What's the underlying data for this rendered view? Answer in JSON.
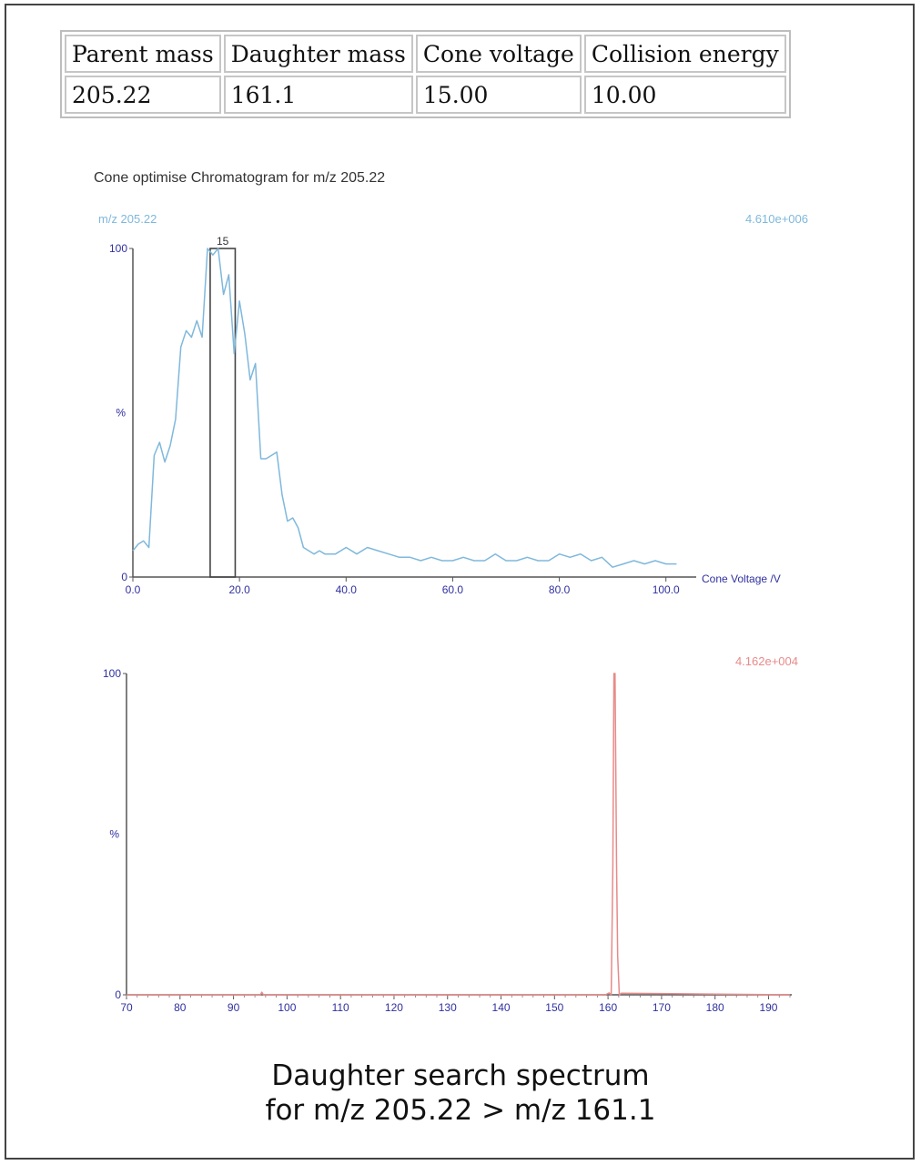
{
  "params_table": {
    "headers": [
      "Parent mass",
      "Daughter mass",
      "Cone voltage",
      "Collision energy"
    ],
    "values": [
      "205.22",
      "161.1",
      "15.00",
      "10.00"
    ]
  },
  "caption": {
    "line1": "Daughter search spectrum",
    "line2": "for m/z 205.22 > m/z 161.1"
  },
  "colors": {
    "cone_trace": "#7fb8dc",
    "daughter_trace": "#e88a8a",
    "axis_labels": "#3030a0",
    "frame": "#555555"
  },
  "chart_data": [
    {
      "type": "line",
      "title": "Cone optimise Chromatogram for m/z 205.22",
      "trace_label": "m/z 205.22",
      "intensity": "4.610e+006",
      "xlabel": "Cone Voltage /V",
      "ylabel": "%",
      "xlim": [
        0,
        105
      ],
      "ylim": [
        0,
        100
      ],
      "x_ticks": [
        "0.0",
        "20.0",
        "40.0",
        "60.0",
        "80.0",
        "100.0"
      ],
      "y_ticks": [
        "0",
        "100"
      ],
      "y_mid_label": "%",
      "selected_label": "15",
      "selected_range": [
        14.5,
        19.2
      ],
      "x": [
        0,
        1,
        2,
        3,
        4,
        5,
        6,
        7,
        8,
        9,
        10,
        11,
        12,
        13,
        14,
        15,
        16,
        17,
        18,
        19,
        20,
        21,
        22,
        23,
        24,
        25,
        26,
        27,
        28,
        29,
        30,
        31,
        32,
        33,
        34,
        35,
        36,
        38,
        40,
        42,
        44,
        46,
        48,
        50,
        52,
        54,
        56,
        58,
        60,
        62,
        64,
        66,
        68,
        70,
        72,
        74,
        76,
        78,
        80,
        82,
        84,
        86,
        88,
        90,
        92,
        94,
        96,
        98,
        100,
        101,
        102
      ],
      "y": [
        8,
        10,
        11,
        9,
        37,
        41,
        35,
        40,
        48,
        70,
        75,
        73,
        78,
        73,
        100,
        98,
        100,
        86,
        92,
        68,
        84,
        74,
        60,
        65,
        36,
        36,
        37,
        38,
        25,
        17,
        18,
        15,
        9,
        8,
        7,
        8,
        7,
        7,
        9,
        7,
        9,
        8,
        7,
        6,
        6,
        5,
        6,
        5,
        5,
        6,
        5,
        5,
        7,
        5,
        5,
        6,
        5,
        5,
        7,
        6,
        7,
        5,
        6,
        3,
        4,
        5,
        4,
        5,
        4,
        4,
        4
      ]
    },
    {
      "type": "line",
      "title": "",
      "intensity": "4.162e+004",
      "xlabel": "",
      "ylabel": "%",
      "xlim": [
        70,
        194
      ],
      "ylim": [
        0,
        100
      ],
      "x_ticks": [
        "70",
        "80",
        "90",
        "100",
        "110",
        "120",
        "130",
        "140",
        "150",
        "160",
        "170",
        "180",
        "190"
      ],
      "y_ticks": [
        "0",
        "100"
      ],
      "y_mid_label": "%",
      "x": [
        70,
        95,
        95.3,
        95.6,
        159.5,
        160.2,
        160.6,
        160.9,
        161.1,
        161.3,
        161.6,
        161.8,
        162.1,
        162.5,
        194
      ],
      "y": [
        0,
        0,
        0.8,
        0,
        0,
        0.6,
        0,
        40,
        100,
        100,
        40,
        12,
        0,
        0.5,
        0
      ]
    }
  ]
}
